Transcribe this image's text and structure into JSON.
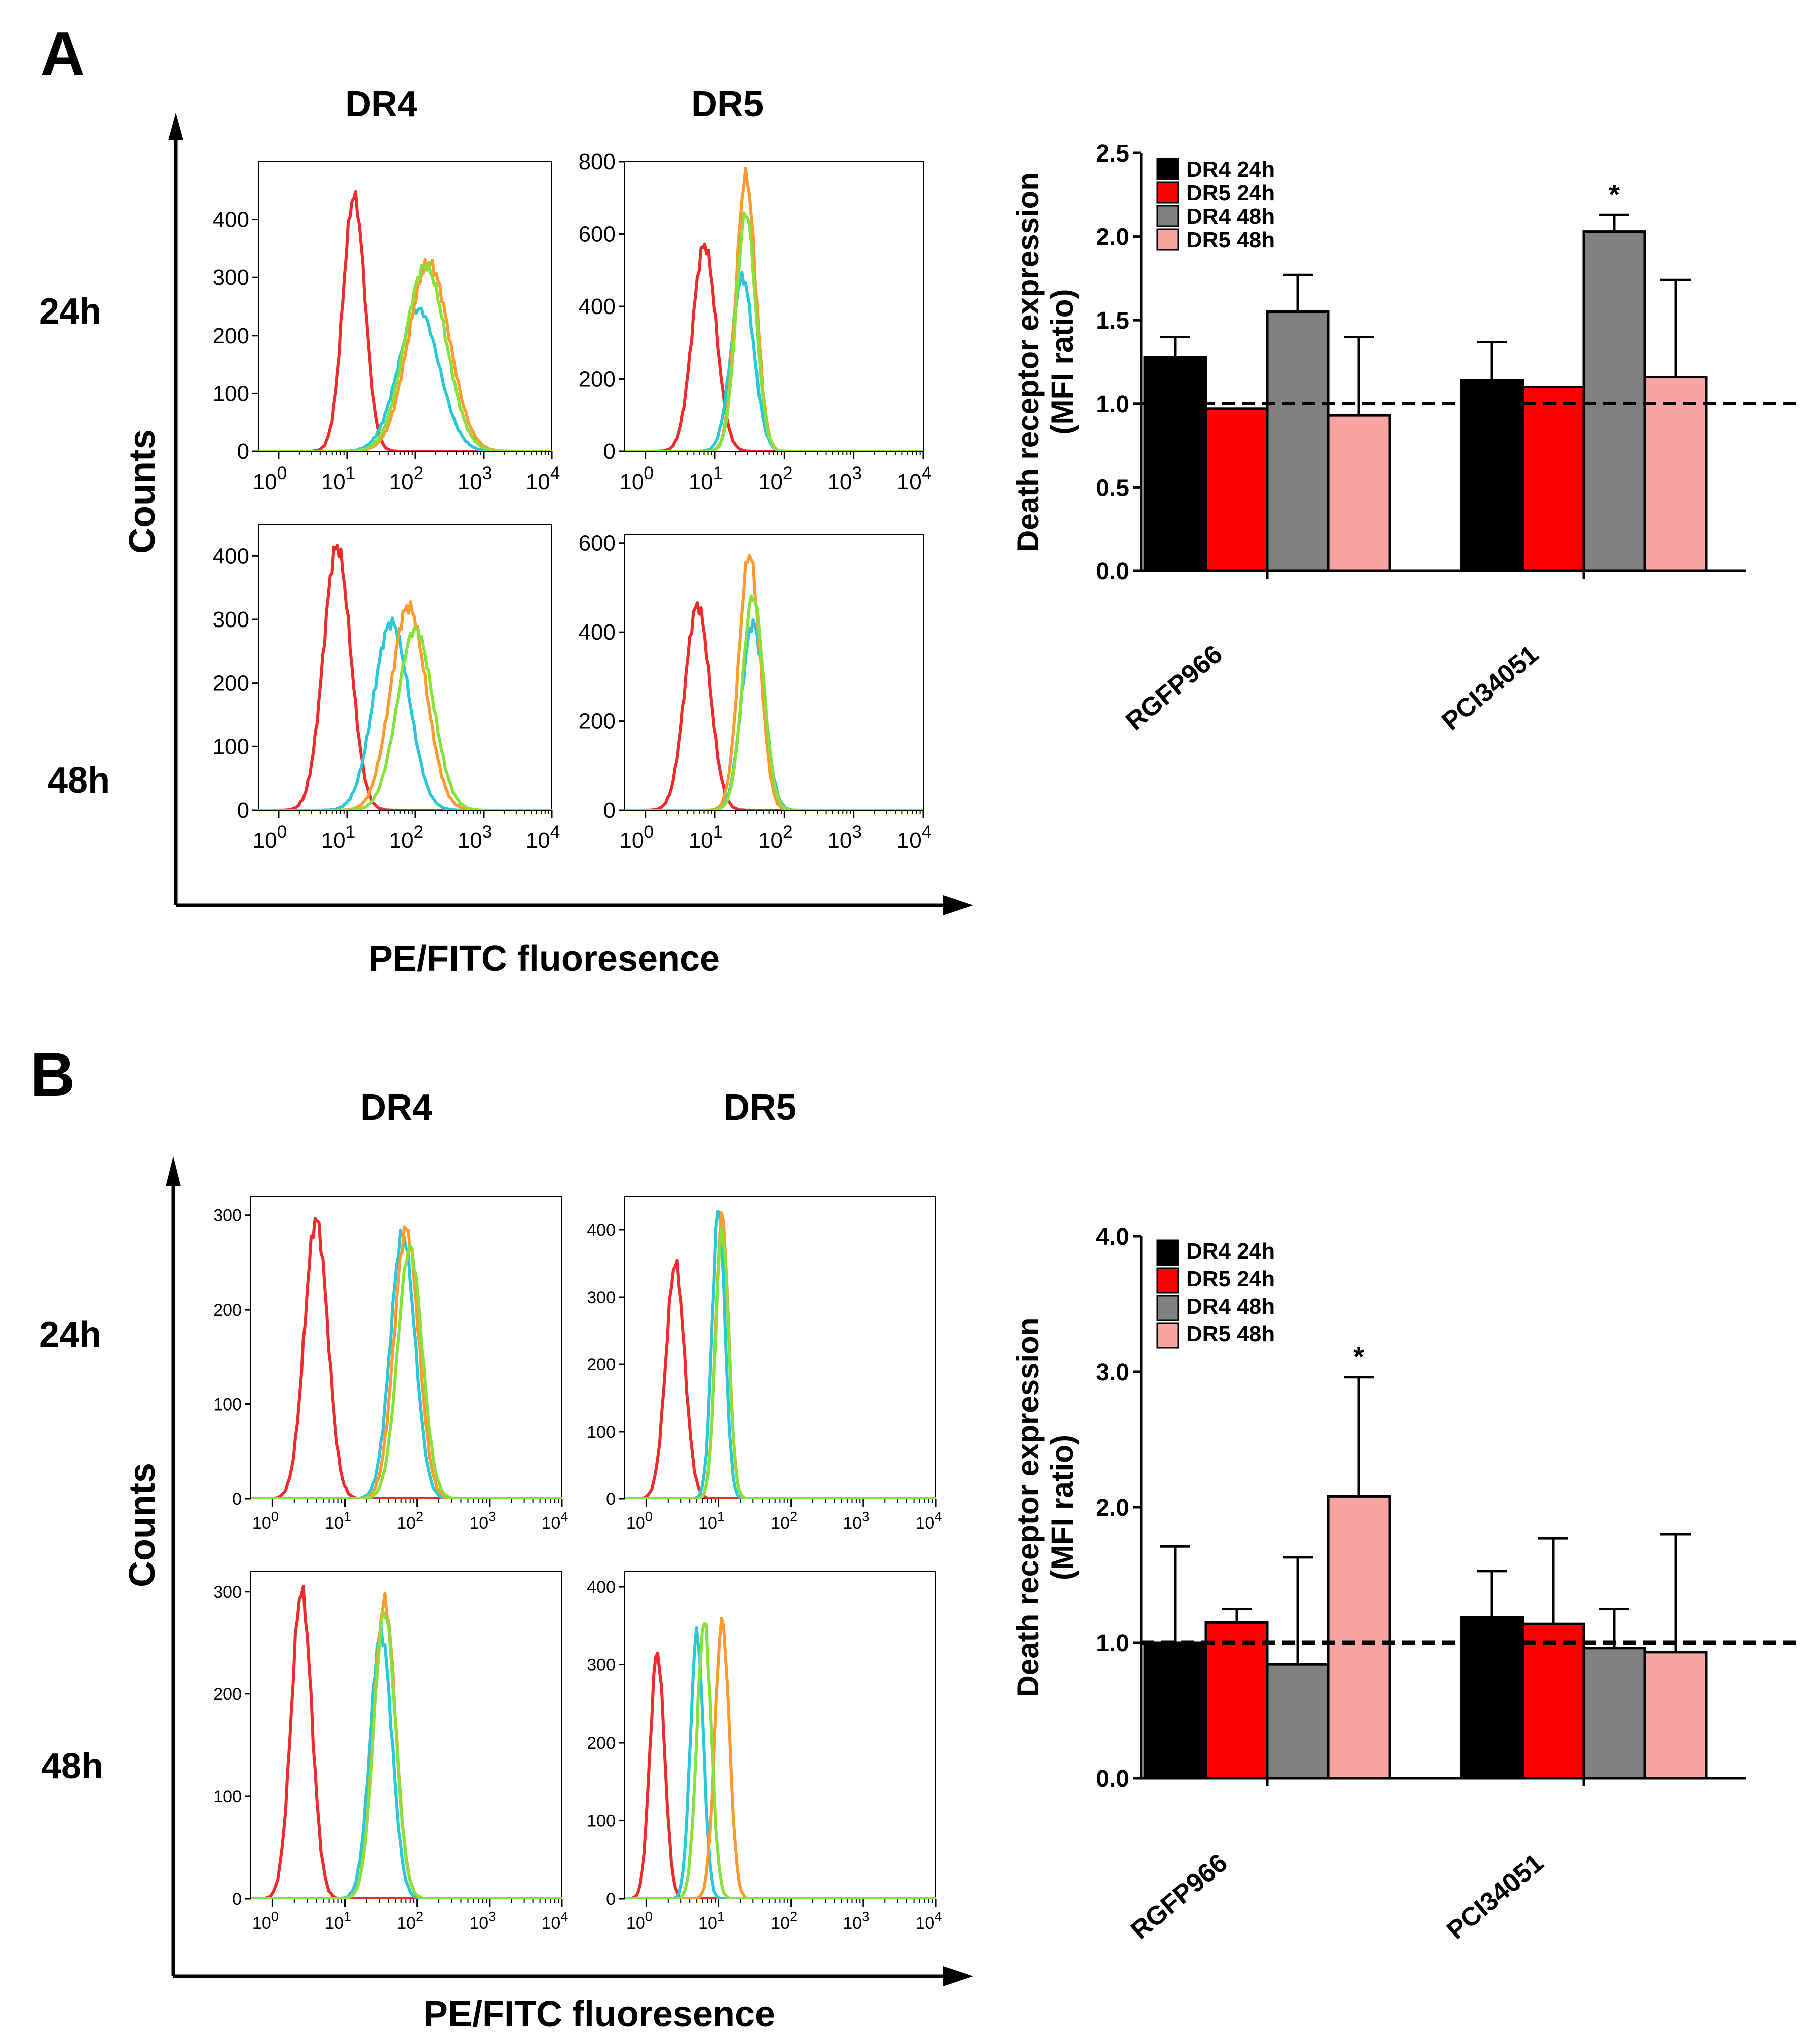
{
  "figure": {
    "panels": {
      "A": {
        "letter": "A"
      },
      "B": {
        "letter": "B"
      }
    },
    "columns": {
      "dr4": "DR4",
      "dr5": "DR5"
    },
    "rows": {
      "r24": "24h",
      "r48": "48h"
    },
    "axis": {
      "y": "Counts",
      "x": "PE/FITC fluoresence"
    },
    "log_ticks": [
      {
        "base": "10",
        "exp": "0"
      },
      {
        "base": "10",
        "exp": "1"
      },
      {
        "base": "10",
        "exp": "2"
      },
      {
        "base": "10",
        "exp": "3"
      },
      {
        "base": "10",
        "exp": "4"
      }
    ],
    "trace_colors": {
      "red": "#ee2a2a",
      "cyan": "#28c8d8",
      "orange": "#ff9a2e",
      "green": "#86e23a"
    }
  },
  "chart_data": [
    {
      "id": "A-DR4-24h",
      "type": "line",
      "title": "DR4",
      "row": "24h",
      "xscale": "log",
      "xlim": [
        0.5,
        10000
      ],
      "ylim": [
        0,
        500
      ],
      "yticks": [
        0,
        100,
        200,
        300,
        400
      ],
      "series": [
        {
          "name": "control",
          "color": "#ee2a2a",
          "center": 1.1,
          "width": 0.16,
          "peak": 440
        },
        {
          "name": "cyan",
          "color": "#28c8d8",
          "center": 2.05,
          "width": 0.3,
          "peak": 245
        },
        {
          "name": "orange",
          "color": "#ff9a2e",
          "center": 2.2,
          "width": 0.3,
          "peak": 325
        },
        {
          "name": "green",
          "color": "#86e23a",
          "center": 2.15,
          "width": 0.3,
          "peak": 320
        }
      ]
    },
    {
      "id": "A-DR5-24h",
      "type": "line",
      "title": "DR5",
      "row": "24h",
      "xscale": "log",
      "xlim": [
        0.5,
        10000
      ],
      "ylim": [
        0,
        800
      ],
      "yticks": [
        0,
        200,
        400,
        600,
        800
      ],
      "series": [
        {
          "name": "control",
          "color": "#ee2a2a",
          "center": 0.85,
          "width": 0.17,
          "peak": 570
        },
        {
          "name": "cyan",
          "color": "#28c8d8",
          "center": 1.4,
          "width": 0.16,
          "peak": 480
        },
        {
          "name": "orange",
          "color": "#ff9a2e",
          "center": 1.45,
          "width": 0.14,
          "peak": 760
        },
        {
          "name": "green",
          "color": "#86e23a",
          "center": 1.45,
          "width": 0.14,
          "peak": 660
        }
      ]
    },
    {
      "id": "A-DR4-48h",
      "type": "line",
      "title": "DR4",
      "row": "48h",
      "xscale": "log",
      "xlim": [
        0.5,
        10000
      ],
      "ylim": [
        0,
        450
      ],
      "yticks": [
        0,
        100,
        200,
        300,
        400
      ],
      "series": [
        {
          "name": "control",
          "color": "#ee2a2a",
          "center": 0.85,
          "width": 0.2,
          "peak": 415
        },
        {
          "name": "cyan",
          "color": "#28c8d8",
          "center": 1.65,
          "width": 0.26,
          "peak": 295
        },
        {
          "name": "orange",
          "color": "#ff9a2e",
          "center": 1.9,
          "width": 0.26,
          "peak": 320
        },
        {
          "name": "green",
          "color": "#86e23a",
          "center": 2.0,
          "width": 0.26,
          "peak": 285
        }
      ]
    },
    {
      "id": "A-DR5-48h",
      "type": "line",
      "title": "DR5",
      "row": "48h",
      "xscale": "log",
      "xlim": [
        0.5,
        10000
      ],
      "ylim": [
        0,
        620
      ],
      "yticks": [
        0,
        200,
        400,
        600
      ],
      "series": [
        {
          "name": "control",
          "color": "#ee2a2a",
          "center": 0.75,
          "width": 0.18,
          "peak": 460
        },
        {
          "name": "cyan",
          "color": "#28c8d8",
          "center": 1.55,
          "width": 0.16,
          "peak": 420
        },
        {
          "name": "orange",
          "color": "#ff9a2e",
          "center": 1.5,
          "width": 0.15,
          "peak": 575
        },
        {
          "name": "green",
          "color": "#86e23a",
          "center": 1.55,
          "width": 0.15,
          "peak": 480
        }
      ]
    },
    {
      "id": "B-DR4-24h",
      "type": "line",
      "title": "DR4",
      "row": "24h",
      "xscale": "log",
      "xlim": [
        0.5,
        10000
      ],
      "ylim": [
        0,
        320
      ],
      "yticks": [
        0,
        100,
        200,
        300
      ],
      "series": [
        {
          "name": "control",
          "color": "#ee2a2a",
          "center": 0.6,
          "width": 0.16,
          "peak": 295
        },
        {
          "name": "cyan",
          "color": "#28c8d8",
          "center": 1.8,
          "width": 0.17,
          "peak": 280
        },
        {
          "name": "orange",
          "color": "#ff9a2e",
          "center": 1.85,
          "width": 0.17,
          "peak": 285
        },
        {
          "name": "green",
          "color": "#86e23a",
          "center": 1.9,
          "width": 0.17,
          "peak": 265
        }
      ]
    },
    {
      "id": "B-DR5-24h",
      "type": "line",
      "title": "DR5",
      "row": "24h",
      "xscale": "log",
      "xlim": [
        0.5,
        10000
      ],
      "ylim": [
        0,
        450
      ],
      "yticks": [
        0,
        100,
        200,
        300,
        400
      ],
      "series": [
        {
          "name": "control",
          "color": "#ee2a2a",
          "center": 0.4,
          "width": 0.13,
          "peak": 350
        },
        {
          "name": "cyan",
          "color": "#28c8d8",
          "center": 1.0,
          "width": 0.09,
          "peak": 430
        },
        {
          "name": "orange",
          "color": "#ff9a2e",
          "center": 1.05,
          "width": 0.09,
          "peak": 420
        },
        {
          "name": "green",
          "color": "#86e23a",
          "center": 1.05,
          "width": 0.09,
          "peak": 400
        }
      ]
    },
    {
      "id": "B-DR4-48h",
      "type": "line",
      "title": "DR4",
      "row": "48h",
      "xscale": "log",
      "xlim": [
        0.5,
        10000
      ],
      "ylim": [
        0,
        320
      ],
      "yticks": [
        0,
        100,
        200,
        300
      ],
      "series": [
        {
          "name": "control",
          "color": "#ee2a2a",
          "center": 0.4,
          "width": 0.14,
          "peak": 300
        },
        {
          "name": "cyan",
          "color": "#28c8d8",
          "center": 1.5,
          "width": 0.15,
          "peak": 260
        },
        {
          "name": "orange",
          "color": "#ff9a2e",
          "center": 1.55,
          "width": 0.15,
          "peak": 290
        },
        {
          "name": "green",
          "color": "#86e23a",
          "center": 1.55,
          "width": 0.15,
          "peak": 280
        }
      ]
    },
    {
      "id": "B-DR5-48h",
      "type": "line",
      "title": "DR5",
      "row": "48h",
      "xscale": "log",
      "xlim": [
        0.5,
        10000
      ],
      "ylim": [
        0,
        420
      ],
      "yticks": [
        0,
        100,
        200,
        300,
        400
      ],
      "series": [
        {
          "name": "control",
          "color": "#ee2a2a",
          "center": 0.15,
          "width": 0.1,
          "peak": 315
        },
        {
          "name": "cyan",
          "color": "#28c8d8",
          "center": 0.7,
          "width": 0.09,
          "peak": 340
        },
        {
          "name": "orange",
          "color": "#ff9a2e",
          "center": 1.05,
          "width": 0.1,
          "peak": 355
        },
        {
          "name": "green",
          "color": "#86e23a",
          "center": 0.8,
          "width": 0.1,
          "peak": 355
        }
      ]
    },
    {
      "id": "A-bar",
      "type": "bar",
      "ylabel": [
        "Death receptor expression",
        "(MFI ratio)"
      ],
      "ylim": [
        0,
        2.5
      ],
      "yticks": [
        "0.0",
        "0.5",
        "1.0",
        "1.5",
        "2.0",
        "2.5"
      ],
      "reference_line": 1.0,
      "categories": [
        "RGFP966",
        "PCI34051"
      ],
      "series": [
        {
          "name": "DR4 24h",
          "color": "#000000",
          "values": [
            1.28,
            1.14
          ],
          "errors": [
            0.12,
            0.23
          ]
        },
        {
          "name": "DR5 24h",
          "color": "#ff0000",
          "values": [
            0.97,
            1.1
          ],
          "errors": [
            0,
            0
          ]
        },
        {
          "name": "DR4 48h",
          "color": "#808080",
          "values": [
            1.55,
            2.03
          ],
          "errors": [
            0.22,
            0.1
          ]
        },
        {
          "name": "DR5 48h",
          "color": "#f9a3a3",
          "values": [
            0.93,
            1.16
          ],
          "errors": [
            0.47,
            0.58
          ]
        }
      ],
      "annotations": [
        {
          "text": "*",
          "category": "PCI34051",
          "series": "DR4 48h"
        }
      ]
    },
    {
      "id": "B-bar",
      "type": "bar",
      "ylabel": [
        "Death receptor expression",
        "(MFI ratio)"
      ],
      "ylim": [
        0,
        4.0
      ],
      "yticks": [
        "0.0",
        "1.0",
        "2.0",
        "3.0",
        "4.0"
      ],
      "reference_line": 1.0,
      "categories": [
        "RGFP966",
        "PCI34051"
      ],
      "series": [
        {
          "name": "DR4 24h",
          "color": "#000000",
          "values": [
            1.0,
            1.19
          ],
          "errors": [
            0.71,
            0.34
          ]
        },
        {
          "name": "DR5 24h",
          "color": "#ff0000",
          "values": [
            1.15,
            1.14
          ],
          "errors": [
            0.1,
            0.63
          ]
        },
        {
          "name": "DR4 48h",
          "color": "#808080",
          "values": [
            0.84,
            0.96
          ],
          "errors": [
            0.79,
            0.29
          ]
        },
        {
          "name": "DR5 48h",
          "color": "#f9a3a3",
          "values": [
            2.08,
            0.93
          ],
          "errors": [
            0.88,
            0.87
          ]
        }
      ],
      "annotations": [
        {
          "text": "*",
          "category": "RGFP966",
          "series": "DR5 48h"
        }
      ]
    }
  ]
}
